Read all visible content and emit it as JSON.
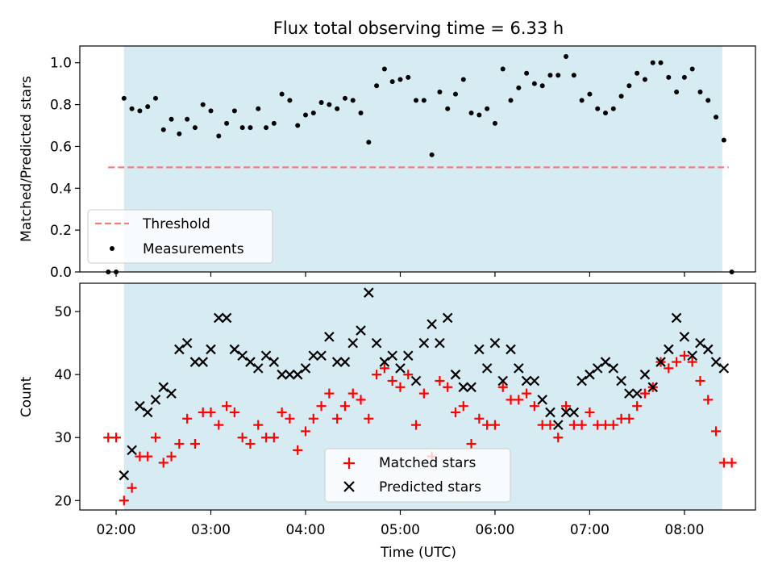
{
  "chart_data": [
    {
      "type": "scatter",
      "title": "Flux total observing time = 6.33 h",
      "ylabel": "Matched/Predicted stars",
      "xlim": [
        "01:37",
        "08:45"
      ],
      "ylim": [
        0,
        1.08
      ],
      "yticks": [
        "0.0",
        "0.2",
        "0.4",
        "0.6",
        "0.8",
        "1.0"
      ],
      "yticks_values": [
        0,
        0.2,
        0.4,
        0.6,
        0.8,
        1.0
      ],
      "shaded_span": [
        "02:05",
        "08:24"
      ],
      "shaded_color": "#add8e6",
      "threshold": {
        "name": "Threshold",
        "value": 0.5,
        "from": "01:55",
        "to": "08:28",
        "color": "#f08080"
      },
      "legend": {
        "placement": "lower-left",
        "entries": [
          "Threshold",
          "Measurements"
        ]
      },
      "series": [
        {
          "name": "Measurements",
          "color": "#000000",
          "marker": "dot",
          "points": [
            [
              "01:55",
              0.0
            ],
            [
              "02:00",
              0.0
            ],
            [
              "02:05",
              0.83
            ],
            [
              "02:10",
              0.78
            ],
            [
              "02:15",
              0.77
            ],
            [
              "02:20",
              0.79
            ],
            [
              "02:25",
              0.83
            ],
            [
              "02:30",
              0.68
            ],
            [
              "02:35",
              0.73
            ],
            [
              "02:40",
              0.66
            ],
            [
              "02:45",
              0.73
            ],
            [
              "02:50",
              0.69
            ],
            [
              "02:55",
              0.8
            ],
            [
              "03:00",
              0.77
            ],
            [
              "03:05",
              0.65
            ],
            [
              "03:10",
              0.71
            ],
            [
              "03:15",
              0.77
            ],
            [
              "03:20",
              0.69
            ],
            [
              "03:25",
              0.69
            ],
            [
              "03:30",
              0.78
            ],
            [
              "03:35",
              0.69
            ],
            [
              "03:40",
              0.71
            ],
            [
              "03:45",
              0.85
            ],
            [
              "03:50",
              0.82
            ],
            [
              "03:55",
              0.7
            ],
            [
              "04:00",
              0.75
            ],
            [
              "04:05",
              0.76
            ],
            [
              "04:10",
              0.81
            ],
            [
              "04:15",
              0.8
            ],
            [
              "04:20",
              0.78
            ],
            [
              "04:25",
              0.83
            ],
            [
              "04:30",
              0.82
            ],
            [
              "04:35",
              0.76
            ],
            [
              "04:40",
              0.62
            ],
            [
              "04:45",
              0.89
            ],
            [
              "04:50",
              0.97
            ],
            [
              "04:55",
              0.91
            ],
            [
              "05:00",
              0.92
            ],
            [
              "05:05",
              0.93
            ],
            [
              "05:10",
              0.82
            ],
            [
              "05:15",
              0.82
            ],
            [
              "05:20",
              0.56
            ],
            [
              "05:25",
              0.86
            ],
            [
              "05:30",
              0.78
            ],
            [
              "05:35",
              0.85
            ],
            [
              "05:40",
              0.92
            ],
            [
              "05:45",
              0.76
            ],
            [
              "05:50",
              0.75
            ],
            [
              "05:55",
              0.78
            ],
            [
              "06:00",
              0.71
            ],
            [
              "06:05",
              0.97
            ],
            [
              "06:10",
              0.82
            ],
            [
              "06:15",
              0.88
            ],
            [
              "06:20",
              0.95
            ],
            [
              "06:25",
              0.9
            ],
            [
              "06:30",
              0.89
            ],
            [
              "06:35",
              0.94
            ],
            [
              "06:40",
              0.94
            ],
            [
              "06:45",
              1.03
            ],
            [
              "06:50",
              0.94
            ],
            [
              "06:55",
              0.82
            ],
            [
              "07:00",
              0.85
            ],
            [
              "07:05",
              0.78
            ],
            [
              "07:10",
              0.76
            ],
            [
              "07:15",
              0.78
            ],
            [
              "07:20",
              0.84
            ],
            [
              "07:25",
              0.89
            ],
            [
              "07:30",
              0.95
            ],
            [
              "07:35",
              0.92
            ],
            [
              "07:40",
              1.0
            ],
            [
              "07:45",
              1.0
            ],
            [
              "07:50",
              0.93
            ],
            [
              "07:55",
              0.86
            ],
            [
              "08:00",
              0.93
            ],
            [
              "08:05",
              0.97
            ],
            [
              "08:10",
              0.86
            ],
            [
              "08:15",
              0.82
            ],
            [
              "08:20",
              0.74
            ],
            [
              "08:25",
              0.63
            ],
            [
              "08:30",
              0.0
            ]
          ]
        }
      ]
    },
    {
      "type": "scatter",
      "ylabel": "Count",
      "xlabel": "Time (UTC)",
      "xlim": [
        "01:37",
        "08:45"
      ],
      "ylim": [
        18.5,
        54.5
      ],
      "xticks": [
        "02:00",
        "03:00",
        "04:00",
        "05:00",
        "06:00",
        "07:00",
        "08:00"
      ],
      "yticks": [
        "20",
        "30",
        "40",
        "50"
      ],
      "yticks_values": [
        20,
        30,
        40,
        50
      ],
      "shaded_span": [
        "02:05",
        "08:24"
      ],
      "shaded_color": "#add8e6",
      "legend": {
        "placement": "lower-center",
        "entries": [
          "Matched stars",
          "Predicted stars"
        ]
      },
      "series": [
        {
          "name": "Matched stars",
          "color": "#ff0000",
          "marker": "plus",
          "points": [
            [
              "01:55",
              30
            ],
            [
              "02:00",
              30
            ],
            [
              "02:05",
              20
            ],
            [
              "02:10",
              22
            ],
            [
              "02:15",
              27
            ],
            [
              "02:20",
              27
            ],
            [
              "02:25",
              30
            ],
            [
              "02:30",
              26
            ],
            [
              "02:35",
              27
            ],
            [
              "02:40",
              29
            ],
            [
              "02:45",
              33
            ],
            [
              "02:50",
              29
            ],
            [
              "02:55",
              34
            ],
            [
              "03:00",
              34
            ],
            [
              "03:05",
              32
            ],
            [
              "03:10",
              35
            ],
            [
              "03:15",
              34
            ],
            [
              "03:20",
              30
            ],
            [
              "03:25",
              29
            ],
            [
              "03:30",
              32
            ],
            [
              "03:35",
              30
            ],
            [
              "03:40",
              30
            ],
            [
              "03:45",
              34
            ],
            [
              "03:50",
              33
            ],
            [
              "03:55",
              28
            ],
            [
              "04:00",
              31
            ],
            [
              "04:05",
              33
            ],
            [
              "04:10",
              35
            ],
            [
              "04:15",
              37
            ],
            [
              "04:20",
              33
            ],
            [
              "04:25",
              35
            ],
            [
              "04:30",
              37
            ],
            [
              "04:35",
              36
            ],
            [
              "04:40",
              33
            ],
            [
              "04:45",
              40
            ],
            [
              "04:50",
              41
            ],
            [
              "04:55",
              39
            ],
            [
              "05:00",
              38
            ],
            [
              "05:05",
              40
            ],
            [
              "05:10",
              32
            ],
            [
              "05:15",
              37
            ],
            [
              "05:20",
              27
            ],
            [
              "05:25",
              39
            ],
            [
              "05:30",
              38
            ],
            [
              "05:35",
              34
            ],
            [
              "05:40",
              35
            ],
            [
              "05:45",
              29
            ],
            [
              "05:50",
              33
            ],
            [
              "05:55",
              32
            ],
            [
              "06:00",
              32
            ],
            [
              "06:05",
              38
            ],
            [
              "06:10",
              36
            ],
            [
              "06:15",
              36
            ],
            [
              "06:20",
              37
            ],
            [
              "06:25",
              35
            ],
            [
              "06:30",
              32
            ],
            [
              "06:35",
              32
            ],
            [
              "06:40",
              30
            ],
            [
              "06:45",
              35
            ],
            [
              "06:50",
              32
            ],
            [
              "06:55",
              32
            ],
            [
              "07:00",
              34
            ],
            [
              "07:05",
              32
            ],
            [
              "07:10",
              32
            ],
            [
              "07:15",
              32
            ],
            [
              "07:20",
              33
            ],
            [
              "07:25",
              33
            ],
            [
              "07:30",
              35
            ],
            [
              "07:35",
              37
            ],
            [
              "07:40",
              38
            ],
            [
              "07:45",
              42
            ],
            [
              "07:50",
              41
            ],
            [
              "07:55",
              42
            ],
            [
              "08:00",
              43
            ],
            [
              "08:05",
              42
            ],
            [
              "08:10",
              39
            ],
            [
              "08:15",
              36
            ],
            [
              "08:20",
              31
            ],
            [
              "08:25",
              26
            ],
            [
              "08:30",
              26
            ]
          ]
        },
        {
          "name": "Predicted stars",
          "color": "#000000",
          "marker": "x",
          "points": [
            [
              "02:05",
              24
            ],
            [
              "02:10",
              28
            ],
            [
              "02:15",
              35
            ],
            [
              "02:20",
              34
            ],
            [
              "02:25",
              36
            ],
            [
              "02:30",
              38
            ],
            [
              "02:35",
              37
            ],
            [
              "02:40",
              44
            ],
            [
              "02:45",
              45
            ],
            [
              "02:50",
              42
            ],
            [
              "02:55",
              42
            ],
            [
              "03:00",
              44
            ],
            [
              "03:05",
              49
            ],
            [
              "03:10",
              49
            ],
            [
              "03:15",
              44
            ],
            [
              "03:20",
              43
            ],
            [
              "03:25",
              42
            ],
            [
              "03:30",
              41
            ],
            [
              "03:35",
              43
            ],
            [
              "03:40",
              42
            ],
            [
              "03:45",
              40
            ],
            [
              "03:50",
              40
            ],
            [
              "03:55",
              40
            ],
            [
              "04:00",
              41
            ],
            [
              "04:05",
              43
            ],
            [
              "04:10",
              43
            ],
            [
              "04:15",
              46
            ],
            [
              "04:20",
              42
            ],
            [
              "04:25",
              42
            ],
            [
              "04:30",
              45
            ],
            [
              "04:35",
              47
            ],
            [
              "04:40",
              53
            ],
            [
              "04:45",
              45
            ],
            [
              "04:50",
              42
            ],
            [
              "04:55",
              43
            ],
            [
              "05:00",
              41
            ],
            [
              "05:05",
              43
            ],
            [
              "05:10",
              39
            ],
            [
              "05:15",
              45
            ],
            [
              "05:20",
              48
            ],
            [
              "05:25",
              45
            ],
            [
              "05:30",
              49
            ],
            [
              "05:35",
              40
            ],
            [
              "05:40",
              38
            ],
            [
              "05:45",
              38
            ],
            [
              "05:50",
              44
            ],
            [
              "05:55",
              41
            ],
            [
              "06:00",
              45
            ],
            [
              "06:05",
              39
            ],
            [
              "06:10",
              44
            ],
            [
              "06:15",
              41
            ],
            [
              "06:20",
              39
            ],
            [
              "06:25",
              39
            ],
            [
              "06:30",
              36
            ],
            [
              "06:35",
              34
            ],
            [
              "06:40",
              32
            ],
            [
              "06:45",
              34
            ],
            [
              "06:50",
              34
            ],
            [
              "06:55",
              39
            ],
            [
              "07:00",
              40
            ],
            [
              "07:05",
              41
            ],
            [
              "07:10",
              42
            ],
            [
              "07:15",
              41
            ],
            [
              "07:20",
              39
            ],
            [
              "07:25",
              37
            ],
            [
              "07:30",
              37
            ],
            [
              "07:35",
              40
            ],
            [
              "07:40",
              38
            ],
            [
              "07:45",
              42
            ],
            [
              "07:50",
              44
            ],
            [
              "07:55",
              49
            ],
            [
              "08:00",
              46
            ],
            [
              "08:05",
              43
            ],
            [
              "08:10",
              45
            ],
            [
              "08:15",
              44
            ],
            [
              "08:20",
              42
            ],
            [
              "08:25",
              41
            ]
          ]
        }
      ]
    }
  ]
}
